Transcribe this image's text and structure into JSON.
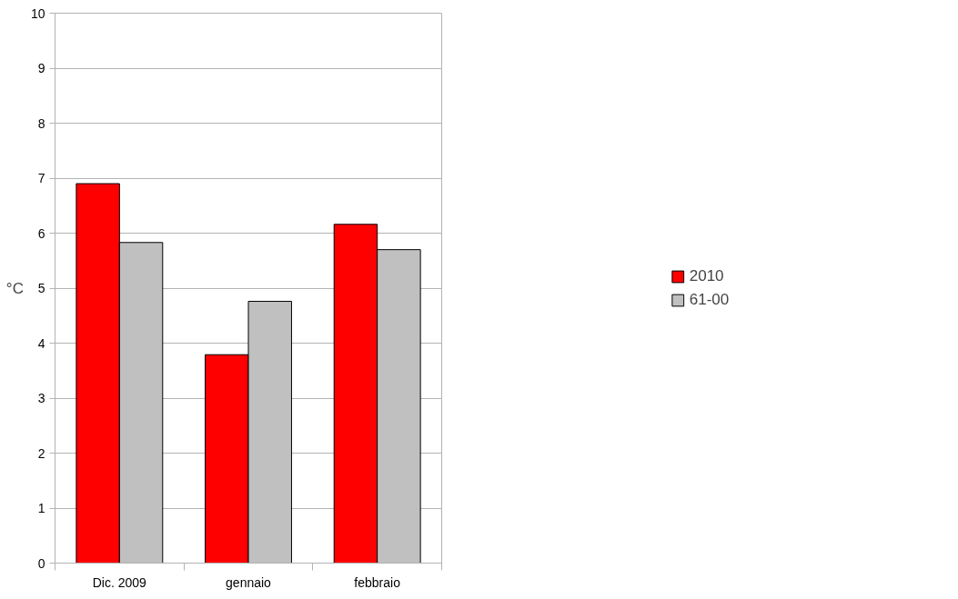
{
  "chart_data": {
    "type": "bar",
    "ylabel": "°C",
    "categories": [
      "Dic. 2009",
      "gennaio",
      "febbraio"
    ],
    "series": [
      {
        "name": "2010",
        "color": "#ff0000",
        "values": [
          6.9,
          3.79,
          6.16
        ]
      },
      {
        "name": "61-00",
        "color": "#c0c0c0",
        "values": [
          5.83,
          4.76,
          5.7
        ]
      }
    ],
    "ylim": [
      0,
      10
    ],
    "yticks": [
      0,
      1,
      2,
      3,
      4,
      5,
      6,
      7,
      8,
      9,
      10
    ],
    "grid": "y",
    "legend": "right"
  }
}
